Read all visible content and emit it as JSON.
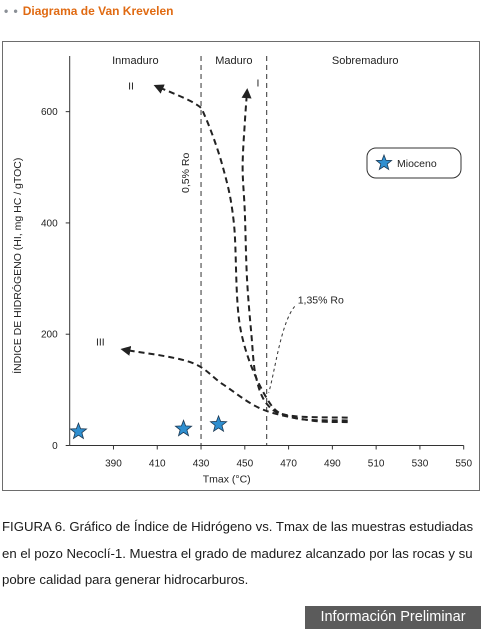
{
  "header": {
    "dots": "• •",
    "title": "Diagrama de Van Krevelen"
  },
  "chart_data": {
    "type": "scatter",
    "title": "",
    "xlabel": "Tmax (°C)",
    "ylabel": "ÍNDICE DE HIDRÓGENO (HI, mg HC / gTOC)",
    "xlim": [
      370,
      550
    ],
    "ylim": [
      0,
      700
    ],
    "xticks": [
      390,
      410,
      430,
      450,
      470,
      490,
      510,
      530,
      550
    ],
    "yticks": [
      0,
      200,
      400,
      600
    ],
    "zones": [
      "Inmaduro",
      "Maduro",
      "Sobremaduro"
    ],
    "thresholds": [
      {
        "x": 430,
        "label": "0,5% Ro"
      },
      {
        "x": 460,
        "label": "1,35% Ro"
      }
    ],
    "kerogen_curves": [
      {
        "label": "I",
        "points": [
          [
            497,
            50
          ],
          [
            470,
            54
          ],
          [
            460,
            75
          ],
          [
            455,
            125
          ],
          [
            453,
            200
          ],
          [
            451,
            300
          ],
          [
            450,
            420
          ],
          [
            449,
            500
          ],
          [
            450,
            580
          ],
          [
            451,
            635
          ]
        ]
      },
      {
        "label": "II",
        "points": [
          [
            497,
            45
          ],
          [
            472,
            50
          ],
          [
            460,
            85
          ],
          [
            448,
            210
          ],
          [
            445,
            400
          ],
          [
            440,
            500
          ],
          [
            432,
            590
          ],
          [
            427,
            615
          ],
          [
            410,
            645
          ]
        ]
      },
      {
        "label": "III",
        "points": [
          [
            497,
            42
          ],
          [
            480,
            45
          ],
          [
            458,
            65
          ],
          [
            440,
            110
          ],
          [
            425,
            150
          ],
          [
            395,
            172
          ]
        ]
      }
    ],
    "series": [
      {
        "name": "Mioceno",
        "marker": "star",
        "color": "#2f8fd0",
        "points": [
          [
            374,
            25
          ],
          [
            422,
            30
          ],
          [
            438,
            38
          ]
        ]
      }
    ],
    "legend_position": "right"
  },
  "caption": "FIGURA 6. Gráfico de Índice de Hidrógeno vs. Tmax de las muestras estudiadas en el pozo Necoclí-1. Muestra el grado de madurez alcanzado por las rocas y su pobre calidad para generar hidrocarburos.",
  "badge": "Información Preliminar"
}
